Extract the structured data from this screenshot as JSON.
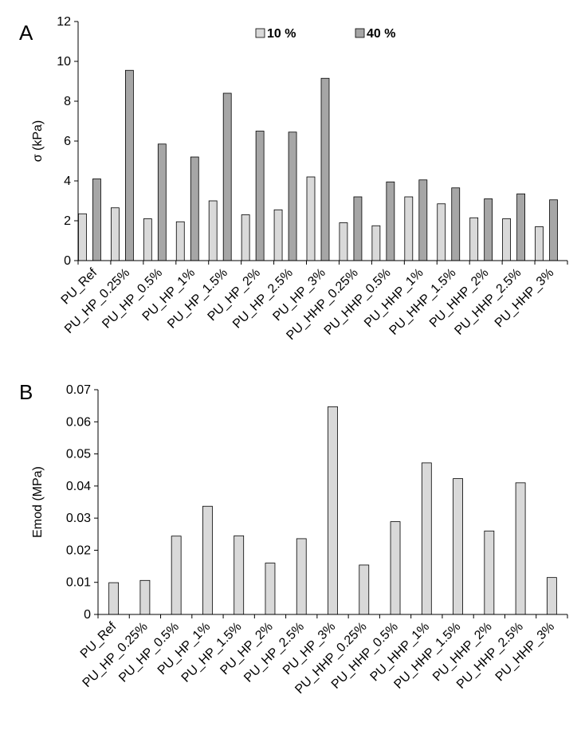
{
  "chart_data": [
    {
      "type": "bar",
      "panel_label": "A",
      "categories": [
        "PU_Ref",
        "PU_HP_0.25%",
        "PU_HP_0.5%",
        "PU_HP_1%",
        "PU_HP_1.5%",
        "PU_HP_2%",
        "PU_HP_2.5%",
        "PU_HP_3%",
        "PU_HHP_0.25%",
        "PU_HHP_0.5%",
        "PU_HHP_1%",
        "PU_HHP_1.5%",
        "PU_HHP_2%",
        "PU_HHP_2.5%",
        "PU_HHP_3%"
      ],
      "series": [
        {
          "name": "10 %",
          "color": "#d9d9d9",
          "values": [
            2.35,
            2.65,
            2.1,
            1.95,
            3.0,
            2.3,
            2.55,
            4.2,
            1.9,
            1.75,
            3.2,
            2.85,
            2.15,
            2.1,
            1.7
          ]
        },
        {
          "name": "40 %",
          "color": "#a6a6a6",
          "values": [
            4.1,
            9.55,
            5.85,
            5.2,
            8.4,
            6.5,
            6.45,
            9.15,
            3.2,
            3.95,
            4.05,
            3.65,
            3.1,
            3.35,
            3.05
          ]
        }
      ],
      "xlabel": "",
      "ylabel": "σ (kPa)",
      "ylim": [
        0,
        12
      ],
      "yticks": [
        "0",
        "2",
        "4",
        "6",
        "8",
        "10",
        "12"
      ],
      "legend_position": "top-center",
      "grid": false
    },
    {
      "type": "bar",
      "panel_label": "B",
      "categories": [
        "PU_Ref",
        "PU_HP_0.25%",
        "PU_HP_0.5%",
        "PU_HP_1%",
        "PU_HP_1.5%",
        "PU_HP_2%",
        "PU_HP_2.5%",
        "PU_HP_3%",
        "PU_HHP_0.25%",
        "PU_HHP_0.5%",
        "PU_HHP_1%",
        "PU_HHP_1.5%",
        "PU_HHP_2%",
        "PU_HHP_2.5%",
        "PU_HHP_3%"
      ],
      "series": [
        {
          "name": "Emod",
          "color": "#d9d9d9",
          "values": [
            0.0099,
            0.0106,
            0.0244,
            0.0337,
            0.0245,
            0.016,
            0.0236,
            0.0647,
            0.0154,
            0.0289,
            0.0472,
            0.0423,
            0.026,
            0.041,
            0.0115
          ]
        }
      ],
      "xlabel": "",
      "ylabel": "Emod (MPa)",
      "ylim": [
        0,
        0.07
      ],
      "yticks": [
        "0",
        "0.01",
        "0.02",
        "0.03",
        "0.04",
        "0.05",
        "0.06",
        "0.07"
      ],
      "grid": false
    }
  ]
}
